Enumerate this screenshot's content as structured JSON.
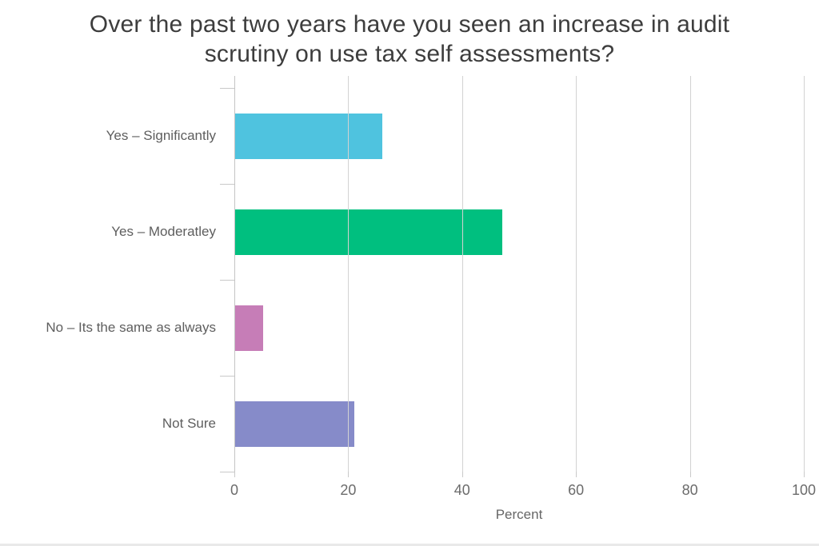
{
  "chart_data": {
    "type": "bar",
    "orientation": "horizontal",
    "title": "Over the past two years have you seen an increase in audit scrutiny on use tax self assessments?",
    "title_lines": [
      "Over the past two years have you seen an increase in audit",
      "scrutiny on use tax self assessments?"
    ],
    "categories": [
      "Yes – Significantly",
      "Yes – Moderatley",
      "No – Its the same as always",
      "Not Sure"
    ],
    "values": [
      26,
      47,
      5,
      21
    ],
    "series_colors": [
      "#4fc3df",
      "#00bf7f",
      "#c67db7",
      "#868bc9"
    ],
    "xlabel": "Percent",
    "x_ticks": [
      0,
      20,
      40,
      60,
      80,
      100
    ],
    "xlim": [
      0,
      100
    ],
    "grid": true,
    "legend": false,
    "colors": {
      "background": "#ffffff",
      "title_text": "#3d3d3d",
      "category_text": "#5e5e5e",
      "tick_text": "#6b6b6b",
      "gridline": "#d2d2d2",
      "axis_line": "#c4c4c4"
    }
  }
}
